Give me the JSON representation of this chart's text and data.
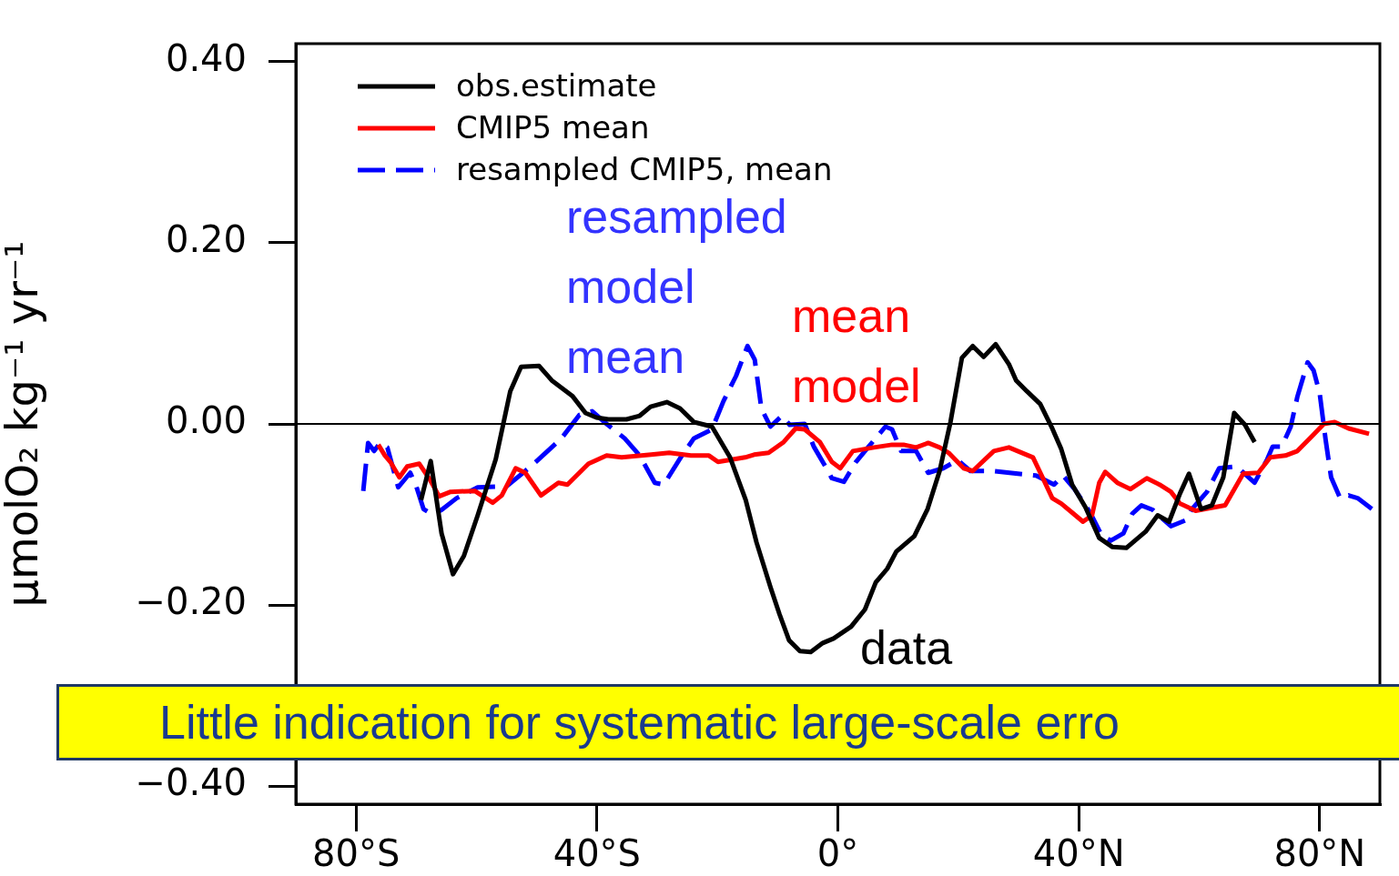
{
  "chart_data": {
    "type": "line",
    "ylabel": "μmolO₂ kg⁻¹ yr⁻¹",
    "xlim": [
      -90,
      90
    ],
    "xticks": [
      {
        "value": -80,
        "label": "80°S"
      },
      {
        "value": -40,
        "label": "40°S"
      },
      {
        "value": 0,
        "label": "0°"
      },
      {
        "value": 40,
        "label": "40°N"
      },
      {
        "value": 80,
        "label": "80°N"
      }
    ],
    "ylim": [
      -0.42,
      0.42
    ],
    "yticks": [
      {
        "value": -0.4,
        "label": "−0.40"
      },
      {
        "value": -0.2,
        "label": "−0.20"
      },
      {
        "value": 0,
        "label": "0.00"
      },
      {
        "value": 0.2,
        "label": "0.20"
      },
      {
        "value": 0.4,
        "label": "0.40"
      }
    ],
    "grid": false,
    "legend": "top left",
    "marker": "none",
    "ref_lines": [
      {
        "axis": "y",
        "value": 0,
        "color": "#000000"
      }
    ],
    "series": [
      {
        "name": "obs.estimate",
        "color": "#000000",
        "line_style": "solid",
        "x": [
          -69.2,
          -67.6,
          -65.8,
          -63.9,
          -62.1,
          -59.8,
          -56.8,
          -54.4,
          -52.6,
          -49.6,
          -47.5,
          -44.1,
          -41.9,
          -40.1,
          -38.1,
          -35.1,
          -32.9,
          -31.1,
          -28.4,
          -26.2,
          -23.9,
          -20.9,
          -17.9,
          -15.3,
          -13.5,
          -11.2,
          -9.7,
          -8.1,
          -6.3,
          -4.5,
          -2.5,
          -0.7,
          2.2,
          4.5,
          6.3,
          8.2,
          9.7,
          12.7,
          14.9,
          16.9,
          18.7,
          20.6,
          22.4,
          24.2,
          26.2,
          28.4,
          29.6,
          31.4,
          33.6,
          35.6,
          37.1,
          38.9,
          41.1,
          43.4,
          45.6,
          47.9,
          51.1,
          53.1,
          55.0,
          56.8,
          58.3,
          60.3,
          62.1,
          64.0,
          65.8,
          67.6,
          69.2
        ],
        "values": [
          -0.084,
          -0.041,
          -0.121,
          -0.166,
          -0.146,
          -0.101,
          -0.039,
          0.036,
          0.063,
          0.064,
          0.048,
          0.031,
          0.012,
          0.007,
          0.005,
          0.005,
          0.009,
          0.019,
          0.024,
          0.017,
          0.002,
          -0.003,
          -0.037,
          -0.084,
          -0.131,
          -0.18,
          -0.21,
          -0.239,
          -0.251,
          -0.252,
          -0.242,
          -0.237,
          -0.224,
          -0.205,
          -0.175,
          -0.16,
          -0.141,
          -0.124,
          -0.094,
          -0.052,
          0.002,
          0.073,
          0.086,
          0.074,
          0.088,
          0.066,
          0.048,
          0.036,
          0.022,
          -0.005,
          -0.028,
          -0.067,
          -0.092,
          -0.126,
          -0.136,
          -0.137,
          -0.119,
          -0.101,
          -0.108,
          -0.077,
          -0.055,
          -0.094,
          -0.09,
          -0.059,
          0.012,
          -0.001,
          -0.02
        ]
      },
      {
        "name": "CMIP5 mean",
        "color": "#ff0000",
        "line_style": "solid",
        "x": [
          -76.3,
          -75.2,
          -74.3,
          -72.8,
          -71.5,
          -69.5,
          -67.7,
          -66.2,
          -64.3,
          -60.3,
          -57.3,
          -55.8,
          -53.5,
          -51.9,
          -49.3,
          -46.4,
          -44.9,
          -41.4,
          -38.4,
          -35.9,
          -31.0,
          -28.0,
          -24.4,
          -21.4,
          -19.9,
          -15.4,
          -13.9,
          -11.5,
          -9.0,
          -7.0,
          -5.5,
          -3.0,
          -1.0,
          0.4,
          2.5,
          6.0,
          9.0,
          10.9,
          13.0,
          15.0,
          16.9,
          18.4,
          20.9,
          22.4,
          25.9,
          28.4,
          32.4,
          34.4,
          35.6,
          37.1,
          38.9,
          40.7,
          42.2,
          43.4,
          44.4,
          46.4,
          48.6,
          51.3,
          53.4,
          55.3,
          56.8,
          59.4,
          61.8,
          64.3,
          67.3,
          69.8,
          71.8,
          74.3,
          76.3,
          78.8,
          80.7,
          82.5,
          84.8,
          88.2
        ],
        "values": [
          -0.023,
          -0.035,
          -0.042,
          -0.059,
          -0.047,
          -0.044,
          -0.062,
          -0.08,
          -0.075,
          -0.074,
          -0.087,
          -0.079,
          -0.049,
          -0.054,
          -0.079,
          -0.065,
          -0.067,
          -0.044,
          -0.035,
          -0.037,
          -0.034,
          -0.032,
          -0.035,
          -0.035,
          -0.042,
          -0.037,
          -0.034,
          -0.032,
          -0.02,
          -0.005,
          -0.006,
          -0.02,
          -0.042,
          -0.049,
          -0.03,
          -0.026,
          -0.023,
          -0.023,
          -0.026,
          -0.021,
          -0.026,
          -0.032,
          -0.049,
          -0.052,
          -0.03,
          -0.026,
          -0.037,
          -0.065,
          -0.082,
          -0.088,
          -0.098,
          -0.108,
          -0.101,
          -0.065,
          -0.053,
          -0.065,
          -0.072,
          -0.06,
          -0.067,
          -0.075,
          -0.088,
          -0.096,
          -0.093,
          -0.09,
          -0.055,
          -0.054,
          -0.037,
          -0.035,
          -0.03,
          -0.013,
          0.0,
          0.002,
          -0.005,
          -0.011
        ]
      },
      {
        "name": "resampled CMIP5, mean",
        "color": "#0000ff",
        "line_style": "dashed",
        "x": [
          -78.8,
          -78.0,
          -77.0,
          -76.0,
          -74.8,
          -73.0,
          -71.0,
          -70.0,
          -68.8,
          -67.3,
          -65.8,
          -63.3,
          -59.8,
          -55.0,
          -50.8,
          -45.9,
          -42.9,
          -40.8,
          -38.4,
          -35.4,
          -32.9,
          -30.4,
          -28.9,
          -25.9,
          -23.9,
          -20.9,
          -19.0,
          -16.9,
          -15.0,
          -13.8,
          -12.7,
          -11.2,
          -9.3,
          -8.0,
          -5.5,
          -4.0,
          -1.9,
          -1.0,
          1.0,
          3.0,
          5.0,
          7.9,
          9.0,
          10.5,
          13.0,
          15.0,
          17.5,
          19.9,
          22.0,
          25.9,
          29.9,
          32.9,
          35.9,
          37.4,
          39.3,
          41.9,
          43.8,
          45.3,
          47.4,
          48.9,
          50.4,
          52.3,
          55.3,
          57.9,
          58.8,
          61.3,
          63.3,
          66.2,
          69.2,
          71.3,
          72.2,
          73.7,
          75.2,
          76.3,
          78.0,
          79.0,
          80.0,
          81.0,
          81.9,
          83.4,
          84.8,
          86.3,
          88.7
        ],
        "values": [
          -0.074,
          -0.021,
          -0.03,
          -0.021,
          -0.026,
          -0.07,
          -0.054,
          -0.069,
          -0.094,
          -0.1,
          -0.095,
          -0.082,
          -0.07,
          -0.069,
          -0.046,
          -0.016,
          0.01,
          0.014,
          0.0,
          -0.016,
          -0.035,
          -0.065,
          -0.067,
          -0.035,
          -0.016,
          -0.006,
          0.025,
          0.053,
          0.086,
          0.071,
          0.017,
          -0.003,
          0.009,
          -0.001,
          0.0,
          -0.025,
          -0.049,
          -0.06,
          -0.064,
          -0.042,
          -0.026,
          -0.003,
          -0.006,
          -0.03,
          -0.03,
          -0.054,
          -0.049,
          -0.04,
          -0.052,
          -0.052,
          -0.055,
          -0.057,
          -0.067,
          -0.057,
          -0.072,
          -0.098,
          -0.123,
          -0.129,
          -0.121,
          -0.099,
          -0.09,
          -0.095,
          -0.113,
          -0.106,
          -0.094,
          -0.075,
          -0.049,
          -0.047,
          -0.065,
          -0.039,
          -0.025,
          -0.025,
          -0.003,
          0.03,
          0.068,
          0.059,
          0.034,
          -0.018,
          -0.059,
          -0.082,
          -0.079,
          -0.082,
          -0.094
        ]
      }
    ],
    "annotations": [
      "resampled model mean",
      "mean model",
      "data",
      "Little indication for systematic large-scale erro"
    ]
  }
}
